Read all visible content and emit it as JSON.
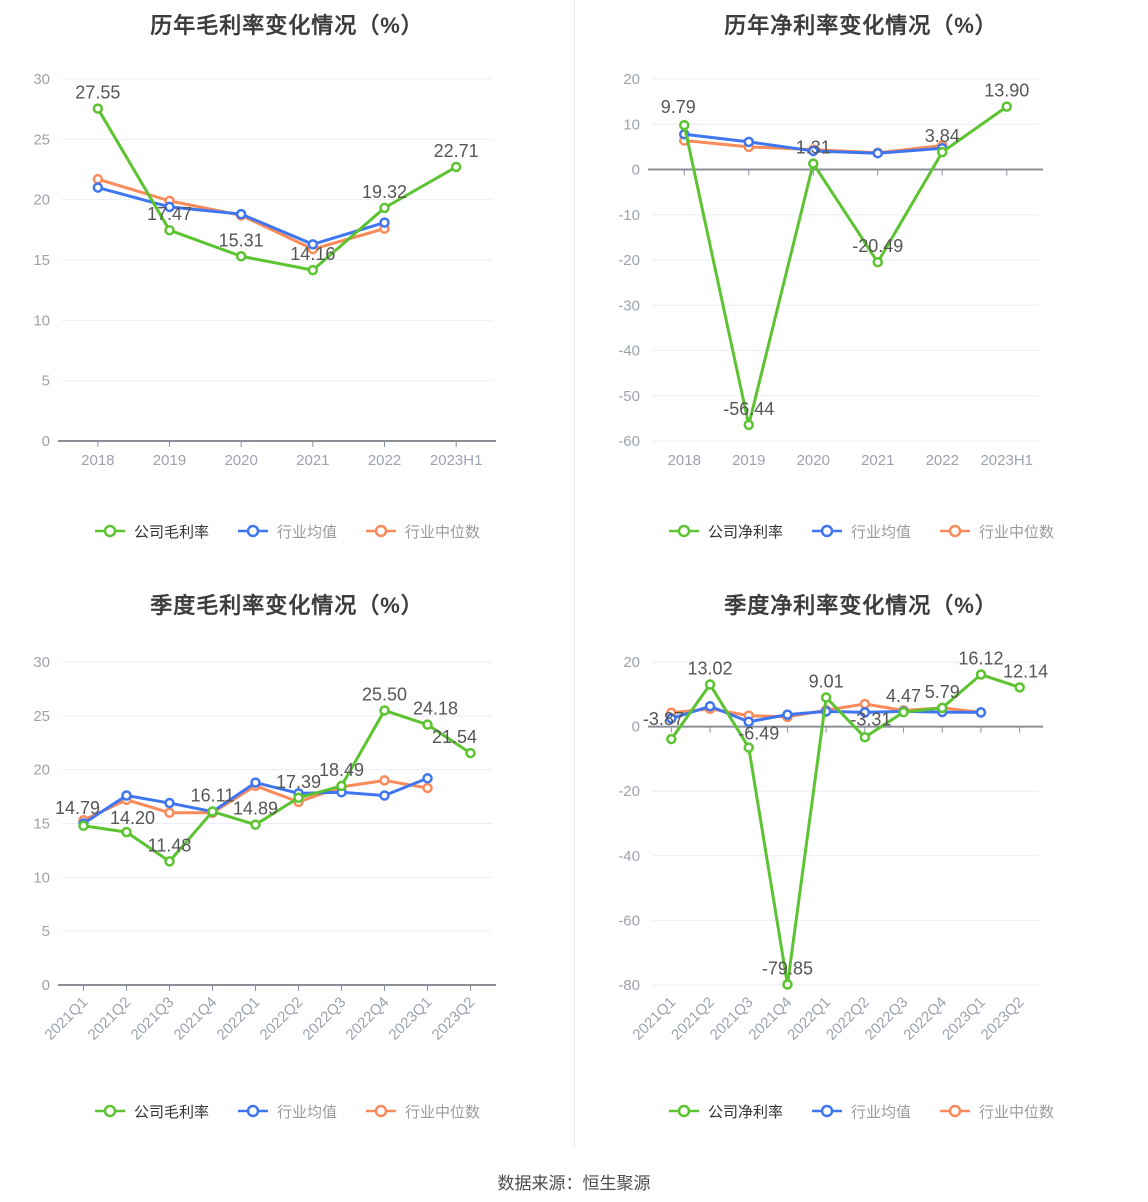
{
  "page": {
    "footer": "数据来源：恒生聚源"
  },
  "style": {
    "company_color": "#5cc331",
    "mean_color": "#3f76f0",
    "median_color": "#f98b5b",
    "grid_color": "#e9edf6",
    "axis_color": "#8b8f98",
    "tick_label_color": "#9ca3af",
    "value_label_color": "#565656"
  },
  "chart_data": [
    {
      "id": "annual-gross-margin",
      "type": "line",
      "title": "历年毛利率变化情况（%）",
      "categories": [
        "2018",
        "2019",
        "2020",
        "2021",
        "2022",
        "2023H1"
      ],
      "ylim": [
        0,
        30
      ],
      "ystep": 5,
      "x_label_rotate": 0,
      "grid": true,
      "legend_position": "bottom",
      "series": [
        {
          "name": "公司毛利率",
          "color_key": "company_color",
          "show_labels": true,
          "values": [
            27.55,
            17.47,
            15.31,
            14.16,
            19.32,
            22.71
          ],
          "label_offsets": {}
        },
        {
          "name": "行业均值",
          "color_key": "mean_color",
          "show_labels": false,
          "values": [
            21.0,
            19.4,
            18.8,
            16.3,
            18.1,
            null
          ]
        },
        {
          "name": "行业中位数",
          "color_key": "median_color",
          "show_labels": false,
          "values": [
            21.7,
            19.9,
            18.7,
            15.9,
            17.6,
            null
          ]
        }
      ]
    },
    {
      "id": "annual-net-margin",
      "type": "line",
      "title": "历年净利率变化情况（%）",
      "categories": [
        "2018",
        "2019",
        "2020",
        "2021",
        "2022",
        "2023H1"
      ],
      "ylim": [
        -60,
        20
      ],
      "ystep": 10,
      "x_label_rotate": 0,
      "grid": true,
      "legend_position": "bottom",
      "series": [
        {
          "name": "公司净利率",
          "color_key": "company_color",
          "show_labels": true,
          "values": [
            9.79,
            -56.44,
            1.31,
            -20.49,
            3.84,
            13.9
          ],
          "label_offsets": {
            "0": [
              -6,
              -2
            ]
          }
        },
        {
          "name": "行业均值",
          "color_key": "mean_color",
          "show_labels": false,
          "values": [
            7.8,
            6.1,
            4.1,
            3.6,
            4.7,
            null
          ]
        },
        {
          "name": "行业中位数",
          "color_key": "median_color",
          "show_labels": false,
          "values": [
            6.4,
            5.0,
            4.4,
            3.7,
            5.3,
            null
          ]
        }
      ]
    },
    {
      "id": "quarterly-gross-margin",
      "type": "line",
      "title": "季度毛利率变化情况（%）",
      "categories": [
        "2021Q1",
        "2021Q2",
        "2021Q3",
        "2021Q4",
        "2022Q1",
        "2022Q2",
        "2022Q3",
        "2022Q4",
        "2023Q1",
        "2023Q2"
      ],
      "ylim": [
        0,
        30
      ],
      "ystep": 5,
      "x_label_rotate": 45,
      "grid": true,
      "legend_position": "bottom",
      "series": [
        {
          "name": "公司毛利率",
          "color_key": "company_color",
          "show_labels": true,
          "values": [
            14.79,
            14.2,
            11.48,
            16.11,
            14.89,
            17.39,
            18.49,
            25.5,
            24.18,
            21.54
          ],
          "label_offsets": {
            "0": [
              -6,
              -2
            ],
            "1": [
              6,
              2
            ],
            "8": [
              8,
              0
            ],
            "9": [
              -16,
              0
            ]
          }
        },
        {
          "name": "行业均值",
          "color_key": "mean_color",
          "show_labels": false,
          "values": [
            15.0,
            17.6,
            16.9,
            16.1,
            18.8,
            17.8,
            17.9,
            17.6,
            19.2,
            null
          ]
        },
        {
          "name": "行业中位数",
          "color_key": "median_color",
          "show_labels": false,
          "values": [
            15.3,
            17.2,
            16.0,
            16.0,
            18.5,
            17.0,
            18.4,
            19.0,
            18.3,
            null
          ]
        }
      ]
    },
    {
      "id": "quarterly-net-margin",
      "type": "line",
      "title": "季度净利率变化情况（%）",
      "categories": [
        "2021Q1",
        "2021Q2",
        "2021Q3",
        "2021Q4",
        "2022Q1",
        "2022Q2",
        "2022Q3",
        "2022Q4",
        "2023Q1",
        "2023Q2"
      ],
      "ylim": [
        -80,
        20
      ],
      "ystep": 20,
      "x_label_rotate": 45,
      "grid": true,
      "legend_position": "bottom",
      "series": [
        {
          "name": "公司净利率",
          "color_key": "company_color",
          "show_labels": true,
          "values": [
            -3.87,
            13.02,
            -6.49,
            -79.85,
            9.01,
            -3.31,
            4.47,
            5.79,
            16.12,
            12.14
          ],
          "label_offsets": {
            "0": [
              -8,
              -4
            ],
            "2": [
              10,
              2
            ],
            "5": [
              6,
              -2
            ],
            "9": [
              6,
              0
            ]
          }
        },
        {
          "name": "行业均值",
          "color_key": "mean_color",
          "show_labels": false,
          "values": [
            2.5,
            6.3,
            1.5,
            3.7,
            4.7,
            4.4,
            4.7,
            4.5,
            4.4,
            null
          ]
        },
        {
          "name": "行业中位数",
          "color_key": "median_color",
          "show_labels": false,
          "values": [
            4.3,
            5.5,
            3.4,
            3.0,
            5.1,
            7.0,
            5.0,
            5.8,
            4.4,
            null
          ]
        }
      ]
    }
  ]
}
